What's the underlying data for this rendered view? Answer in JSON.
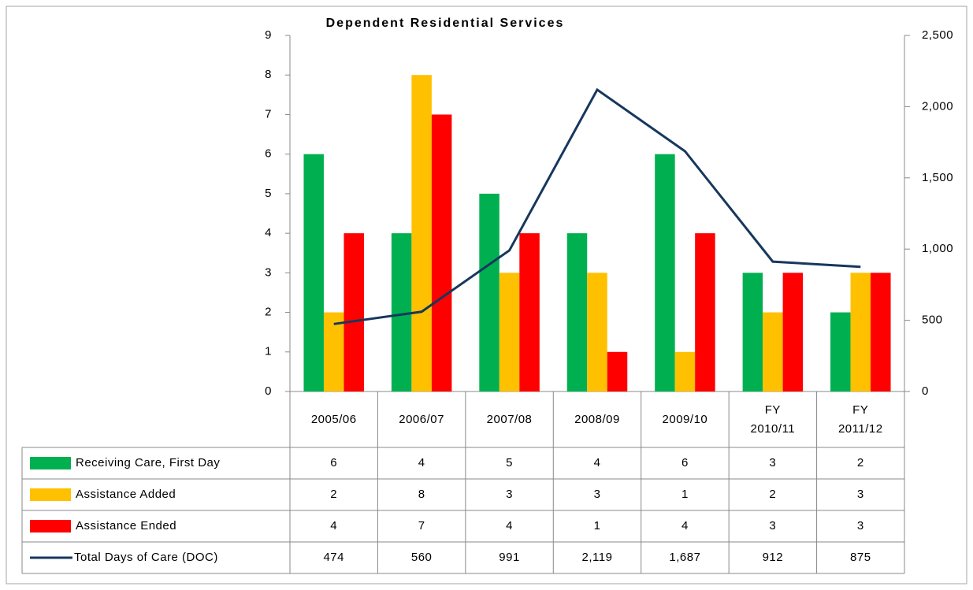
{
  "chart_data": {
    "type": "bar",
    "title": "Dependent Residential Services",
    "categories": [
      "2005/06",
      "2006/07",
      "2007/08",
      "2008/09",
      "2009/10",
      "FY 2010/11",
      "FY 2011/12"
    ],
    "series": [
      {
        "name": "Receiving Care, First Day",
        "type": "bar",
        "color": "#00b050",
        "values": [
          6,
          4,
          5,
          4,
          6,
          3,
          2
        ]
      },
      {
        "name": "Assistance Added",
        "type": "bar",
        "color": "#ffc000",
        "values": [
          2,
          8,
          3,
          3,
          1,
          2,
          3
        ]
      },
      {
        "name": "Assistance Ended",
        "type": "bar",
        "color": "#ff0000",
        "values": [
          4,
          7,
          4,
          1,
          4,
          3,
          3
        ]
      },
      {
        "name": "Total Days of Care (DOC)",
        "type": "line",
        "axis": "y2",
        "color": "#17375e",
        "values": [
          474,
          560,
          991,
          2119,
          1687,
          912,
          875
        ],
        "value_labels": [
          "474",
          "560",
          "991",
          "2,119",
          "1,687",
          "912",
          "875"
        ]
      }
    ],
    "ylim": [
      0,
      9
    ],
    "yticks": [
      0,
      1,
      2,
      3,
      4,
      5,
      6,
      7,
      8,
      9
    ],
    "y2lim": [
      0,
      2500
    ],
    "y2ticks": [
      0,
      500,
      {
        "value": 1000,
        "label": "1,000"
      },
      {
        "value": 1500,
        "label": "1,500"
      },
      {
        "value": 2000,
        "label": "2,000"
      },
      {
        "value": 2500,
        "label": "2,500"
      }
    ],
    "grid": false
  }
}
